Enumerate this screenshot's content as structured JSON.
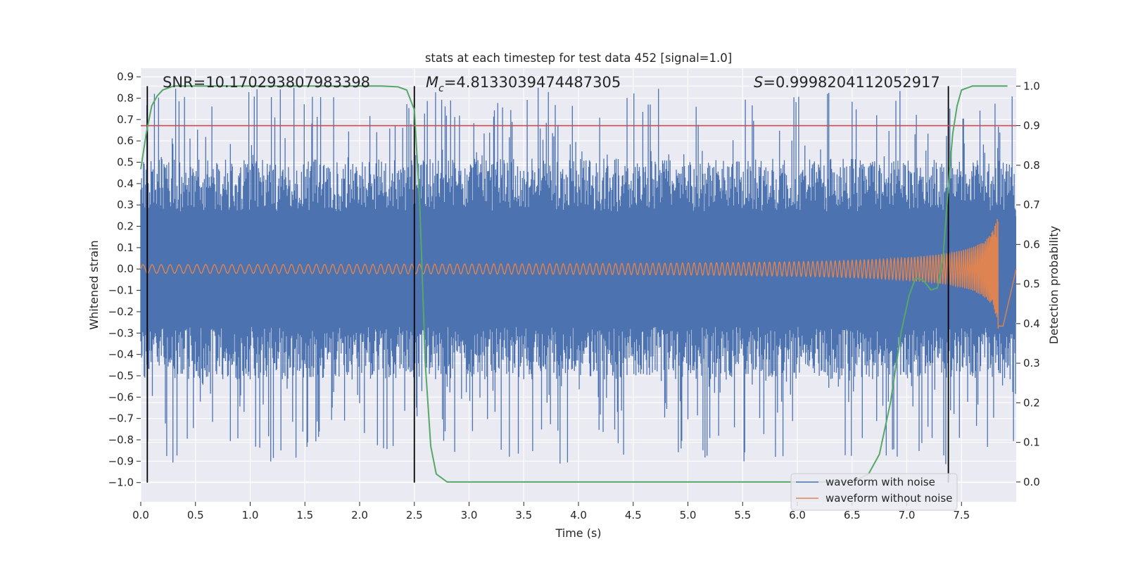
{
  "chart_data": {
    "type": "line",
    "title": "stats at each timestep for test data 452 [signal=1.0]",
    "xlabel": "Time (s)",
    "ylabel_left": "Whitened strain",
    "ylabel_right": "Detection probability",
    "xlim": [
      0.0,
      8.0
    ],
    "ylim_left": [
      -1.09,
      0.94
    ],
    "ylim_right": [
      -0.05,
      1.045
    ],
    "x_ticks": [
      0.0,
      0.5,
      1.0,
      1.5,
      2.0,
      2.5,
      3.0,
      3.5,
      4.0,
      4.5,
      5.0,
      5.5,
      6.0,
      6.5,
      7.0,
      7.5
    ],
    "x_tick_labels": [
      "0.0",
      "0.5",
      "1.0",
      "1.5",
      "2.0",
      "2.5",
      "3.0",
      "3.5",
      "4.0",
      "4.5",
      "5.0",
      "5.5",
      "6.0",
      "6.5",
      "7.0",
      "7.5"
    ],
    "y_left_ticks": [
      0.9,
      0.8,
      0.7,
      0.6,
      0.5,
      0.4,
      0.3,
      0.2,
      0.1,
      0.0,
      -0.1,
      -0.2,
      -0.3,
      -0.4,
      -0.5,
      -0.6,
      -0.7,
      -0.8,
      -0.9,
      -1.0
    ],
    "y_left_tick_labels": [
      "0.9",
      "0.8",
      "0.7",
      "0.6",
      "0.5",
      "0.4",
      "0.3",
      "0.2",
      "0.1",
      "0.0",
      "−0.1",
      "−0.2",
      "−0.3",
      "−0.4",
      "−0.5",
      "−0.6",
      "−0.7",
      "−0.8",
      "−0.9",
      "−1.0"
    ],
    "y_right_ticks": [
      1.0,
      0.9,
      0.8,
      0.7,
      0.6,
      0.5,
      0.4,
      0.3,
      0.2,
      0.1,
      0.0
    ],
    "y_right_tick_labels": [
      "1.0",
      "0.9",
      "0.8",
      "0.7",
      "0.6",
      "0.5",
      "0.4",
      "0.3",
      "0.2",
      "0.1",
      "0.0"
    ],
    "annotations": {
      "snr": "SNR=10.170293807983398",
      "mc_symbol": "M",
      "mc_sub": "c",
      "mc_value": "=4.8133039474487305",
      "s_symbol": "S",
      "s_value": "=0.9998204112052917"
    },
    "vertical_lines_x": [
      0.06,
      2.5,
      7.38
    ],
    "vertical_lines_ymin": -1.0,
    "threshold_right": 0.9,
    "series": [
      {
        "name": "waveform with noise",
        "axis": "left",
        "color": "#4c72b0",
        "kind": "noise",
        "core_amplitude": 0.45,
        "spike_max": 0.85,
        "spike_min": -1.0
      },
      {
        "name": "waveform without noise",
        "axis": "left",
        "color": "#dd8452",
        "kind": "chirp",
        "amplitude_start": 0.02,
        "peak_time": 7.85,
        "peak_amplitude": 0.28,
        "end_time": 7.88
      },
      {
        "name": "detection probability",
        "axis": "right",
        "color": "#55a868",
        "x": [
          0.0,
          0.05,
          0.1,
          0.15,
          0.2,
          0.25,
          0.3,
          0.4,
          0.5,
          1.0,
          1.5,
          2.0,
          2.2,
          2.35,
          2.43,
          2.5,
          2.55,
          2.6,
          2.65,
          2.7,
          2.8,
          3.0,
          4.0,
          5.0,
          6.0,
          6.5,
          6.65,
          6.75,
          6.85,
          6.95,
          7.02,
          7.08,
          7.15,
          7.22,
          7.28,
          7.33,
          7.38,
          7.42,
          7.46,
          7.5,
          7.55,
          7.6,
          7.7,
          7.8,
          7.92
        ],
        "y": [
          0.79,
          0.88,
          0.95,
          0.975,
          0.99,
          0.995,
          1.0,
          1.0,
          1.0,
          1.0,
          1.0,
          1.0,
          1.0,
          0.998,
          0.99,
          0.94,
          0.7,
          0.3,
          0.09,
          0.02,
          0.0,
          0.0,
          0.0,
          0.0,
          0.0,
          0.0,
          0.02,
          0.07,
          0.2,
          0.38,
          0.47,
          0.515,
          0.51,
          0.485,
          0.49,
          0.56,
          0.75,
          0.88,
          0.95,
          0.99,
          0.995,
          1.0,
          1.0,
          1.0,
          1.0
        ]
      }
    ],
    "threshold_line": {
      "name": "threshold",
      "axis": "right",
      "value": 0.9,
      "color": "#c44e52"
    },
    "legend": {
      "location": "lower-right",
      "entries": [
        {
          "label": "waveform with noise",
          "color": "#4c72b0"
        },
        {
          "label": "waveform without noise",
          "color": "#dd8452"
        }
      ]
    },
    "style": {
      "figure_bg": "#ffffff",
      "axes_bg": "#eaeaf2",
      "grid_color": "#ffffff",
      "vline_color": "#000000"
    }
  }
}
